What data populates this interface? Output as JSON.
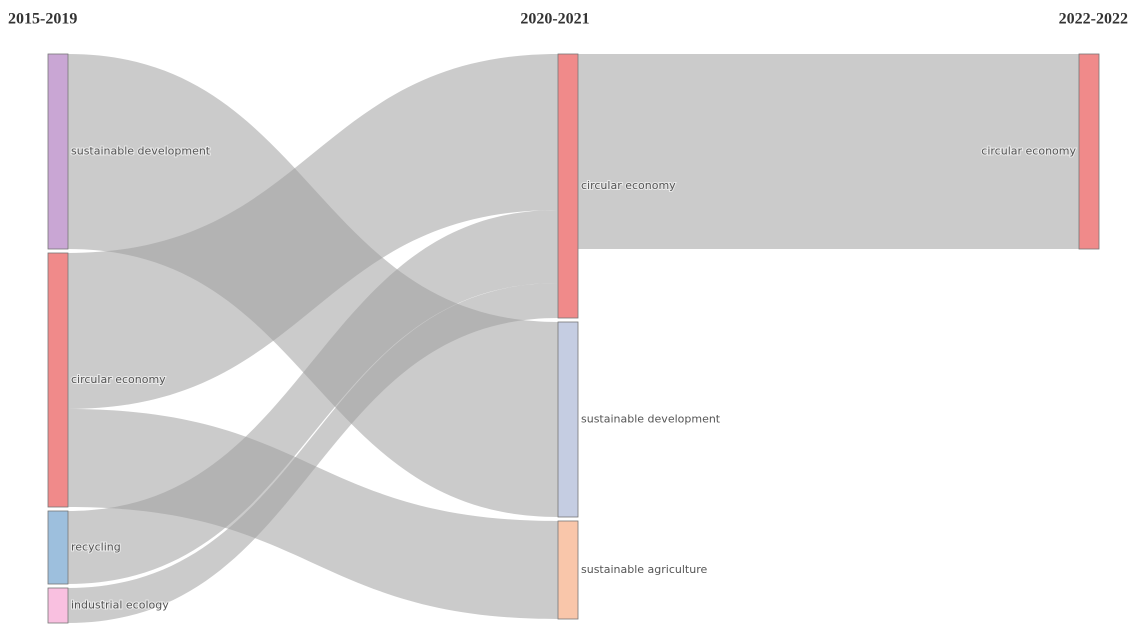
{
  "chart_data": {
    "type": "sankey",
    "columns": [
      "2015-2019",
      "2020-2021",
      "2022-2022"
    ],
    "nodes": [
      {
        "label": "sustainable development",
        "column": 0,
        "color": "#c9a6d4"
      },
      {
        "label": "circular economy",
        "column": 0,
        "color": "#f08a8a"
      },
      {
        "label": "recycling",
        "column": 0,
        "color": "#9dbfdd"
      },
      {
        "label": "industrial ecology",
        "column": 0,
        "color": "#f9c0e0"
      },
      {
        "label": "circular economy",
        "column": 1,
        "color": "#f08a8a"
      },
      {
        "label": "sustainable development",
        "column": 1,
        "color": "#c5cde2"
      },
      {
        "label": "sustainable agriculture",
        "column": 1,
        "color": "#f9c6aa"
      },
      {
        "label": "circular economy",
        "column": 2,
        "color": "#f08a8a"
      }
    ],
    "links": [
      {
        "source": 0,
        "target": 5,
        "value": 195
      },
      {
        "source": 1,
        "target": 4,
        "value": 156
      },
      {
        "source": 1,
        "target": 6,
        "value": 98
      },
      {
        "source": 2,
        "target": 4,
        "value": 73
      },
      {
        "source": 3,
        "target": 4,
        "value": 35
      },
      {
        "source": 4,
        "target": 7,
        "value": 195
      }
    ],
    "link_color": "#a0a0a0"
  }
}
